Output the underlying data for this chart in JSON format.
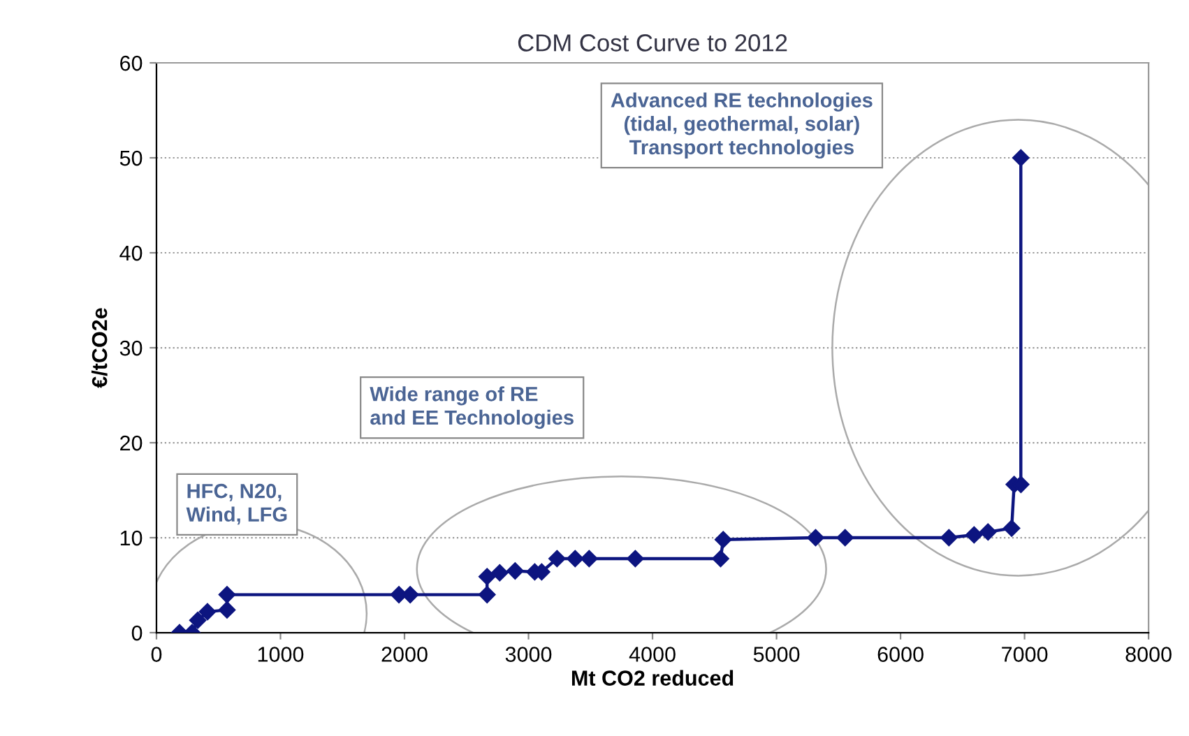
{
  "chart_data": {
    "type": "line",
    "title": "CDM Cost Curve to 2012",
    "xlabel": "Mt CO2 reduced",
    "ylabel": "€/tCO2e",
    "series": [
      {
        "color": "#0d1580",
        "x": [
          186,
          287,
          333,
          411,
          569,
          569,
          1955,
          2046,
          2666,
          2666,
          2768,
          2892,
          3050,
          3106,
          3230,
          3376,
          3489,
          3861,
          4549,
          4570,
          5315,
          5553,
          6390,
          6593,
          6705,
          6896,
          6916,
          6970,
          6970
        ],
        "values": [
          0,
          0,
          1.3,
          2.2,
          2.4,
          4.0,
          4.0,
          4.0,
          4.0,
          5.9,
          6.3,
          6.5,
          6.4,
          6.4,
          7.8,
          7.8,
          7.8,
          7.8,
          7.8,
          9.8,
          10,
          10,
          10,
          10.3,
          10.6,
          11,
          15.6,
          15.6,
          50
        ]
      }
    ],
    "xlim": [
      0,
      8000
    ],
    "xticks": [
      0,
      1000,
      2000,
      3000,
      4000,
      5000,
      6000,
      7000,
      8000
    ],
    "ylim": [
      0,
      60
    ],
    "yticks": [
      0,
      10,
      20,
      30,
      40,
      50,
      60
    ],
    "grid": "y",
    "marker": "diamond",
    "line_style": "solid",
    "annotations": [
      "HFC, N20,\nWind, LFG",
      "Wide range of RE\nand EE Technologies",
      "Advanced RE technologies\n(tidal, geothermal, solar)\nTransport technologies"
    ]
  }
}
